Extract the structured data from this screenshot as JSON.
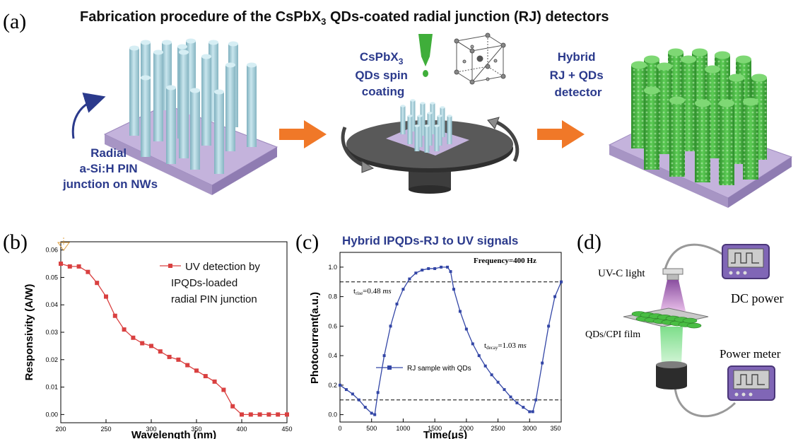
{
  "panel_a": {
    "tag": "(a)",
    "title_prefix": "Fabrication procedure of the CsPbX",
    "title_sub": "3",
    "title_suffix": " QDs-coated radial junction (RJ) detectors",
    "left_label": [
      "Radial",
      "a-Si:H PIN",
      "junction on NWs"
    ],
    "middle_label_first": "CsPbX",
    "middle_label_first_sub": "3",
    "middle_label_rest": [
      "QDs spin",
      "coating"
    ],
    "right_label": [
      "Hybrid",
      "RJ + QDs",
      "detector"
    ]
  },
  "panel_b": {
    "tag": "(b)",
    "legend": [
      "UV detection by",
      "IPQDs-loaded",
      "radial PIN junction"
    ],
    "ylabel": "Responsivity (A/W)",
    "xlabel": "Wavelength (nm)",
    "xticks": [
      "200",
      "250",
      "300",
      "350",
      "400",
      "450"
    ],
    "yticks": [
      "0.00",
      "0.01",
      "0.02",
      "0.03",
      "0.04",
      "0.05",
      "0.06"
    ]
  },
  "panel_c": {
    "tag": "(c)",
    "title": "Hybrid IPQDs-RJ to UV signals",
    "frequency": "Frequency=400 Hz",
    "t_rise_main": "t",
    "t_rise_sub": "rise",
    "t_rise_value": "=0.48 ",
    "t_rise_unit": "ms",
    "t_decay_main": "t",
    "t_decay_sub": "decay",
    "t_decay_value": "=1.03 ",
    "t_decay_unit": "ms",
    "legend": "RJ sample with QDs",
    "ylabel": "Photocurrent(a.u.)",
    "xlabel": "Time(μs)",
    "xticks": [
      "0",
      "500",
      "1000",
      "1500",
      "2000",
      "2500",
      "3000",
      "350"
    ],
    "yticks": [
      "0.0",
      "0.2",
      "0.4",
      "0.6",
      "0.8",
      "1.0"
    ]
  },
  "panel_d": {
    "tag": "(d)",
    "uv_light": "UV-C light",
    "dc_power": "DC power",
    "film": "QDs/CPI film",
    "power_meter": "Power meter"
  },
  "colors": {
    "label_blue": "#2b3a8c",
    "rod_blue": "#a9d2dc",
    "substrate_purple": "#c4b3dc",
    "qd_green": "#3fae3a",
    "arrow_orange": "#f07828",
    "series_red": "#d94040",
    "series_blue": "#3346a6"
  },
  "chart_data": [
    {
      "type": "line",
      "panel": "b",
      "xlabel": "Wavelength (nm)",
      "ylabel": "Responsivity (A/W)",
      "xlim": [
        200,
        450
      ],
      "ylim": [
        0.0,
        0.06
      ],
      "series": [
        {
          "name": "UV detection by IPQDs-loaded radial PIN junction",
          "x": [
            200,
            210,
            220,
            230,
            240,
            250,
            260,
            270,
            280,
            290,
            300,
            310,
            320,
            330,
            340,
            350,
            360,
            370,
            380,
            390,
            400,
            410,
            420,
            430,
            440,
            450
          ],
          "y": [
            0.055,
            0.054,
            0.054,
            0.052,
            0.048,
            0.043,
            0.036,
            0.031,
            0.028,
            0.026,
            0.025,
            0.023,
            0.021,
            0.02,
            0.018,
            0.016,
            0.014,
            0.012,
            0.009,
            0.003,
            0.0,
            0.0,
            0.0,
            0.0,
            0.0,
            0.0
          ]
        }
      ]
    },
    {
      "type": "line",
      "panel": "c",
      "xlabel": "Time(μs)",
      "ylabel": "Photocurrent(a.u.)",
      "xlim": [
        0,
        3500
      ],
      "ylim": [
        -0.05,
        1.1
      ],
      "series": [
        {
          "name": "RJ sample with QDs",
          "x": [
            0,
            100,
            200,
            300,
            400,
            500,
            550,
            600,
            700,
            800,
            900,
            1000,
            1100,
            1200,
            1300,
            1400,
            1500,
            1600,
            1700,
            1750,
            1800,
            1900,
            2000,
            2100,
            2200,
            2300,
            2400,
            2500,
            2600,
            2700,
            2800,
            2900,
            3000,
            3050,
            3100,
            3200,
            3300,
            3400,
            3500
          ],
          "y": [
            0.2,
            0.17,
            0.14,
            0.1,
            0.05,
            0.01,
            0.0,
            0.15,
            0.4,
            0.6,
            0.75,
            0.85,
            0.92,
            0.96,
            0.98,
            0.99,
            0.99,
            1.0,
            1.0,
            0.97,
            0.85,
            0.7,
            0.58,
            0.48,
            0.4,
            0.33,
            0.27,
            0.22,
            0.17,
            0.12,
            0.08,
            0.05,
            0.02,
            0.02,
            0.1,
            0.35,
            0.6,
            0.8,
            0.9
          ]
        }
      ],
      "reference_lines_y": [
        0.9,
        0.1
      ]
    }
  ]
}
